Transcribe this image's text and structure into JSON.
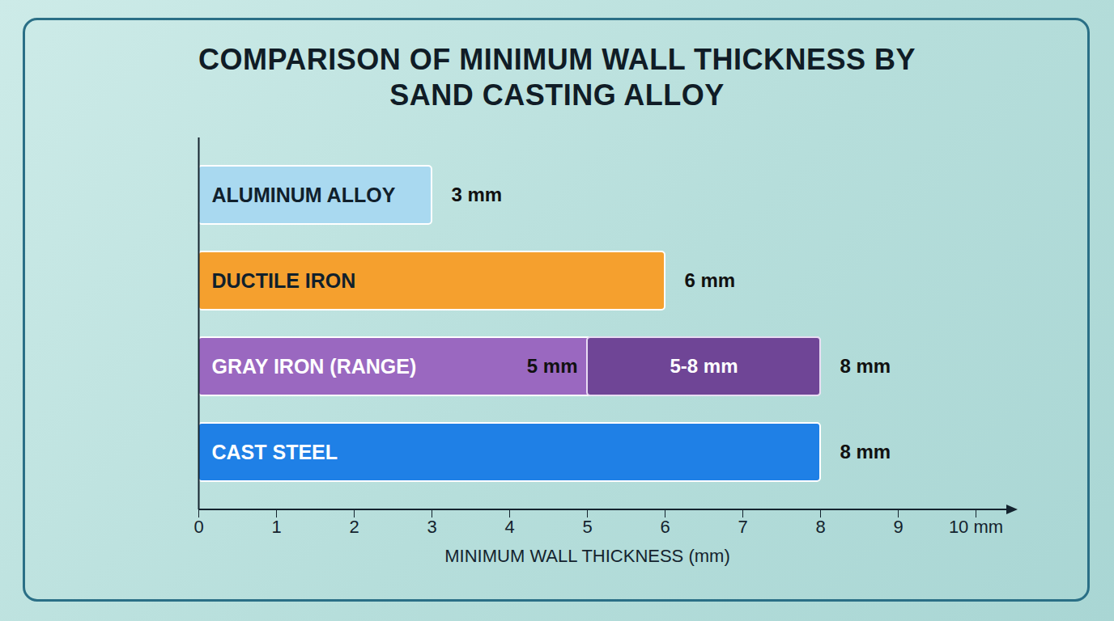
{
  "chart_data": {
    "type": "bar",
    "orientation": "horizontal",
    "title": "COMPARISON OF MINIMUM WALL THICKNESS BY SAND CASTING ALLOY",
    "xlabel": "MINIMUM WALL THICKNESS (mm)",
    "categories": [
      "ALUMINUM ALLOY",
      "DUCTILE IRON",
      "GRAY IRON (RANGE)",
      "CAST STEEL"
    ],
    "values": [
      3,
      6,
      8,
      8
    ],
    "value_labels": [
      "3 mm",
      "6 mm",
      "8 mm",
      "8 mm"
    ],
    "colors": [
      "#a9d9f0",
      "#f5a02e",
      "#9a68c0",
      "#1f80e6"
    ],
    "ranges": [
      {
        "category": "GRAY IRON (RANGE)",
        "low": 5,
        "high": 8,
        "low_label": "5 mm",
        "label": "5-8 mm",
        "color": "#6f4596"
      }
    ],
    "data_labels": true,
    "tick_labels": "x",
    "grid": false,
    "xlim": [
      0,
      10
    ],
    "xticks": [
      0,
      1,
      2,
      3,
      4,
      5,
      6,
      7,
      8,
      9,
      {
        "value": 10,
        "label": "10 mm"
      }
    ]
  }
}
